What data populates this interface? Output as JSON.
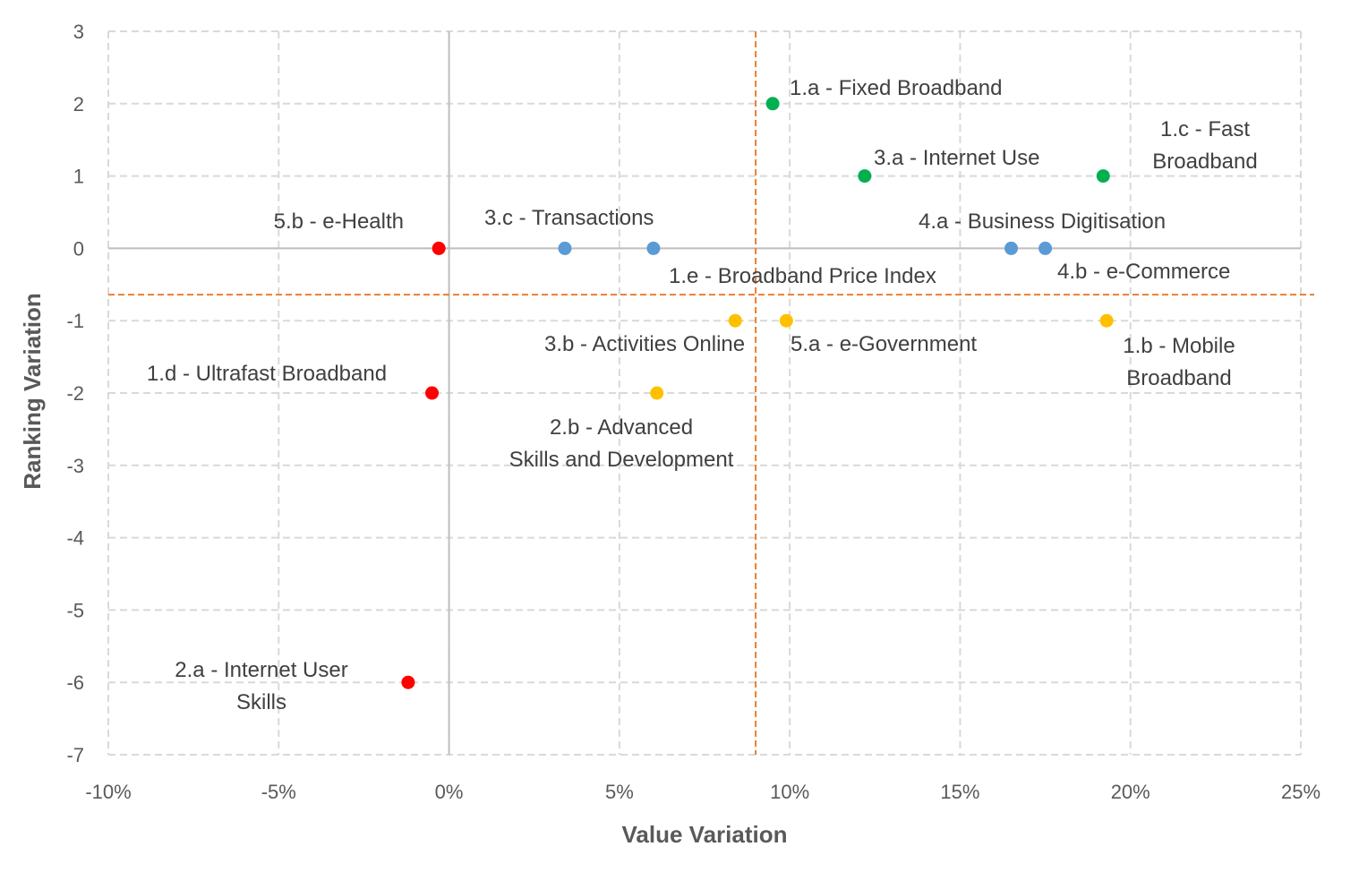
{
  "chart_data": {
    "type": "scatter",
    "title": "",
    "xlabel": "Value Variation",
    "ylabel": "Ranking Variation",
    "xlim": [
      -10,
      25
    ],
    "ylim": [
      -7,
      3
    ],
    "x_unit": "%",
    "x_ticks": [
      -10,
      -5,
      0,
      5,
      10,
      15,
      20,
      25
    ],
    "x_tick_labels": [
      "-10%",
      "-5%",
      "0%",
      "5%",
      "10%",
      "15%",
      "20%",
      "25%"
    ],
    "y_ticks": [
      3,
      2,
      1,
      0,
      -1,
      -2,
      -3,
      -4,
      -5,
      -6,
      -7
    ],
    "y_tick_labels": [
      "3",
      "2",
      "1",
      "0",
      "-1",
      "-2",
      "-3",
      "-4",
      "-5",
      "-6",
      "-7"
    ],
    "grid": true,
    "grid_style": "dashed",
    "reference_lines": {
      "x": 9.0,
      "y": -0.64,
      "color": "#ED7D31",
      "style": "dashed"
    },
    "colors": {
      "red": "#FF0000",
      "blue": "#5B9BD5",
      "green": "#00B050",
      "yellow": "#FFC000"
    },
    "points": [
      {
        "label": "1.a - Fixed Broadband",
        "x": 9.5,
        "y": 2,
        "color": "green"
      },
      {
        "label": "1.c - Fast Broadband",
        "x": 19.2,
        "y": 1,
        "color": "green"
      },
      {
        "label": "3.a - Internet Use",
        "x": 12.2,
        "y": 1,
        "color": "green"
      },
      {
        "label": "5.b - e-Health",
        "x": -0.3,
        "y": 0,
        "color": "red"
      },
      {
        "label": "3.c - Transactions",
        "x": 3.4,
        "y": 0,
        "color": "blue"
      },
      {
        "label": "1.e - Broadband Price Index",
        "x": 6.0,
        "y": 0,
        "color": "blue"
      },
      {
        "label": "4.a - Business Digitisation",
        "x": 16.5,
        "y": 0,
        "color": "blue"
      },
      {
        "label": "4.b - e-Commerce",
        "x": 17.5,
        "y": 0,
        "color": "blue"
      },
      {
        "label": "3.b - Activities Online",
        "x": 8.4,
        "y": -1,
        "color": "yellow"
      },
      {
        "label": "5.a - e-Government",
        "x": 9.9,
        "y": -1,
        "color": "yellow"
      },
      {
        "label": "1.b - Mobile Broadband",
        "x": 19.3,
        "y": -1,
        "color": "yellow"
      },
      {
        "label": "1.d - Ultrafast Broadband",
        "x": 6.1,
        "y": -2,
        "color": "yellow"
      },
      {
        "label": "2.b - Advanced Skills and Development",
        "x": -0.5,
        "y": -2,
        "color": "red"
      },
      {
        "label": "2.a - Internet User Skills",
        "x": -1.2,
        "y": -6,
        "color": "red"
      }
    ]
  }
}
